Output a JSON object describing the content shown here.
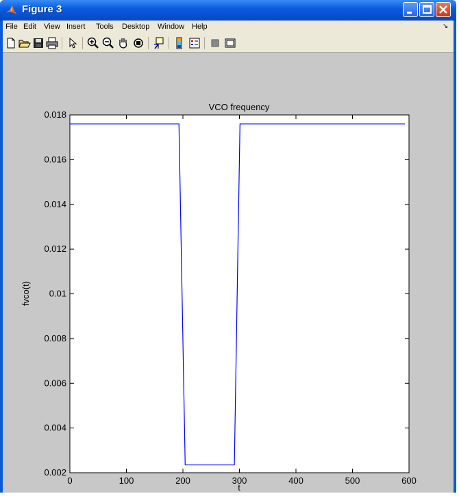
{
  "window": {
    "title": "Figure 3"
  },
  "menu": [
    "File",
    "Edit",
    "View",
    "Insert",
    "Tools",
    "Desktop",
    "Window",
    "Help"
  ],
  "toolbar_icons": [
    "new-figure-icon",
    "open-file-icon",
    "save-icon",
    "print-icon",
    "pointer-icon",
    "zoom-in-icon",
    "zoom-out-icon",
    "pan-hand-icon",
    "rotate-3d-icon",
    "data-cursor-icon",
    "colorbar-icon",
    "legend-icon",
    "hide-plot-tools-icon",
    "show-plot-tools-icon"
  ],
  "chart_data": {
    "type": "line",
    "title": "VCO frequency",
    "xlabel": "t",
    "ylabel": "fvco(t)",
    "xlim": [
      0,
      600
    ],
    "ylim": [
      0.002,
      0.018
    ],
    "xticks": [
      "0",
      "100",
      "200",
      "300",
      "400",
      "500",
      "600"
    ],
    "yticks": [
      "0.002",
      "0.004",
      "0.006",
      "0.008",
      "0.01",
      "0.012",
      "0.014",
      "0.016",
      "0.018"
    ],
    "series": [
      {
        "color": "#0000ff",
        "x": [
          0,
          193,
          204,
          291,
          301,
          593
        ],
        "y": [
          0.0176,
          0.0176,
          0.00235,
          0.00235,
          0.0176,
          0.0176
        ]
      }
    ],
    "grid": false
  }
}
